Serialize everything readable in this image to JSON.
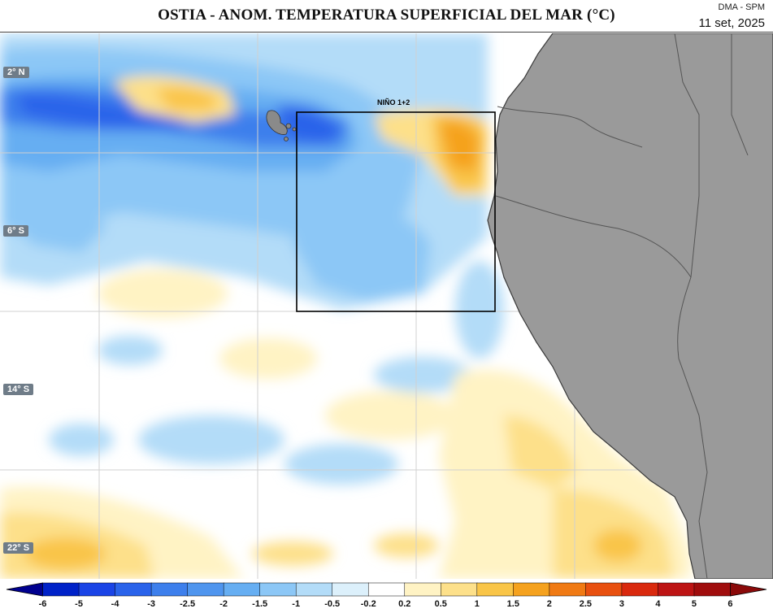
{
  "header": {
    "title": "OSTIA - ANOM. TEMPERATURA SUPERFICIAL DEL MAR (°C)",
    "source": "DMA - SPM",
    "date": "11 set, 2025"
  },
  "map": {
    "region_label": "NIÑO 1+2",
    "latitude_labels": [
      "2° N",
      "6° S",
      "14° S",
      "22° S"
    ],
    "land_color": "#9a9a9a"
  },
  "legend": {
    "ticks": [
      "-6",
      "-5",
      "-4",
      "-3",
      "-2.5",
      "-2",
      "-1.5",
      "-1",
      "-0.5",
      "-0.2",
      "0.2",
      "0.5",
      "1",
      "1.5",
      "2",
      "2.5",
      "3",
      "4",
      "5",
      "6"
    ],
    "colors": [
      "#00008f",
      "#0022c8",
      "#1a44e6",
      "#2a63ea",
      "#3d7fec",
      "#4f95ee",
      "#66aef2",
      "#8cc7f6",
      "#b3dcf8",
      "#dcf0fb",
      "#ffffff",
      "#fff3c4",
      "#fde08a",
      "#f9c548",
      "#f5a21f",
      "#f07a14",
      "#e85010",
      "#d9290e",
      "#bd1414",
      "#a00d0d",
      "#8b0a0a"
    ]
  }
}
